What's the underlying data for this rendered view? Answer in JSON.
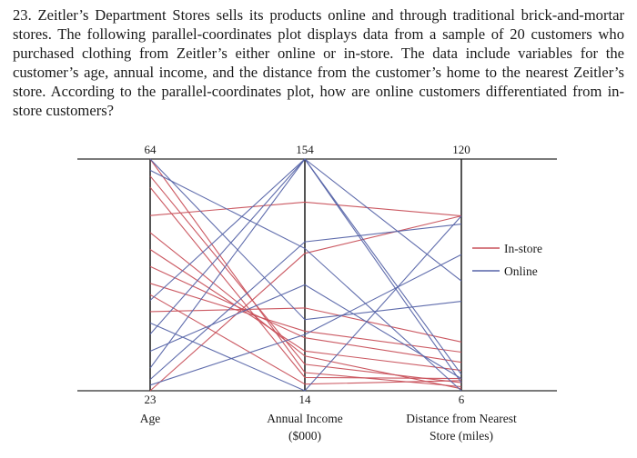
{
  "question": {
    "number": "23.",
    "text": "Zeitler’s Department Stores sells its products online and through traditional brick-and-mortar stores. The following parallel-coordinates plot displays data from a sample of 20 customers who purchased clothing from Zeitler’s either online or in-store. The data include variables for the customer’s age, annual income, and the distance from the customer’s home to the nearest Zeitler’s store. According to the parallel-coordinates plot, how are online customers differentiated from in-store customers?"
  },
  "chart_data": {
    "type": "parallel-coordinates",
    "axes": [
      {
        "name": "Age",
        "label_lines": [
          "Age"
        ],
        "min": 23,
        "max": 64
      },
      {
        "name": "Annual Income ($000)",
        "label_lines": [
          "Annual Income",
          "($000)"
        ],
        "min": 14,
        "max": 154
      },
      {
        "name": "Distance from Nearest Store (miles)",
        "label_lines": [
          "Distance from Nearest",
          "Store (miles)"
        ],
        "min": 6,
        "max": 120
      }
    ],
    "legend": {
      "placement": "right",
      "entries": [
        {
          "name": "In-store",
          "color": "#c8505a"
        },
        {
          "name": "Online",
          "color": "#5664a8"
        }
      ]
    },
    "series": [
      {
        "name": "In-store",
        "color": "#c8505a",
        "records": [
          [
            64,
            25,
            8
          ],
          [
            61,
            30,
            10
          ],
          [
            59,
            22,
            12
          ],
          [
            54,
            128,
            92
          ],
          [
            51,
            35,
            7
          ],
          [
            48,
            38,
            16
          ],
          [
            45,
            46,
            20
          ],
          [
            42,
            50,
            25
          ],
          [
            40,
            18,
            11
          ],
          [
            37,
            64,
            30
          ],
          [
            23,
            97,
            92
          ]
        ]
      },
      {
        "name": "Online",
        "color": "#5664a8",
        "records": [
          [
            64,
            57,
            50
          ],
          [
            62,
            100,
            6
          ],
          [
            39,
            154,
            10
          ],
          [
            35,
            14,
            92
          ],
          [
            33,
            154,
            14
          ],
          [
            30,
            78,
            12
          ],
          [
            27,
            154,
            60
          ],
          [
            25,
            104,
            88
          ],
          [
            24,
            48,
            73
          ]
        ]
      }
    ]
  }
}
